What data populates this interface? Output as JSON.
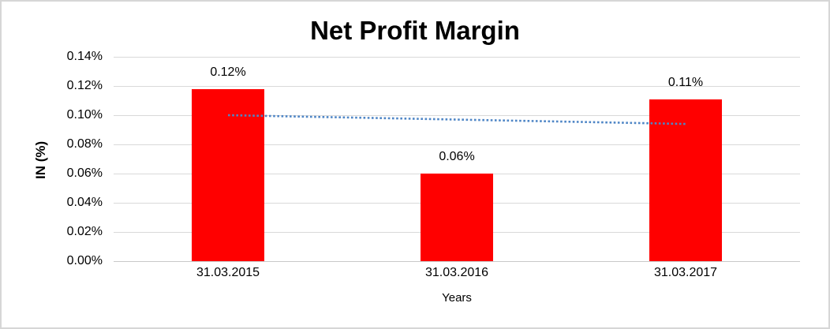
{
  "chart_data": {
    "type": "bar",
    "title": "Net Profit Margin",
    "xlabel": "Years",
    "ylabel": "IN (%)",
    "categories": [
      "31.03.2015",
      "31.03.2016",
      "31.03.2017"
    ],
    "values": [
      0.118,
      0.06,
      0.111
    ],
    "data_labels": [
      "0.12%",
      "0.06%",
      "0.11%"
    ],
    "units": "%",
    "ylim": [
      0,
      0.14
    ],
    "ytick_step": 0.02,
    "ytick_labels": [
      "0.00%",
      "0.02%",
      "0.04%",
      "0.06%",
      "0.08%",
      "0.10%",
      "0.12%",
      "0.14%"
    ],
    "grid": true,
    "legend": "none",
    "bar_color": "#ff0000",
    "gridline_color": "#d9d9d9",
    "trendline": {
      "type": "linear",
      "style": "dotted",
      "color": "#4f86c6",
      "start_pct": 0.1,
      "end_pct": 0.094
    }
  }
}
